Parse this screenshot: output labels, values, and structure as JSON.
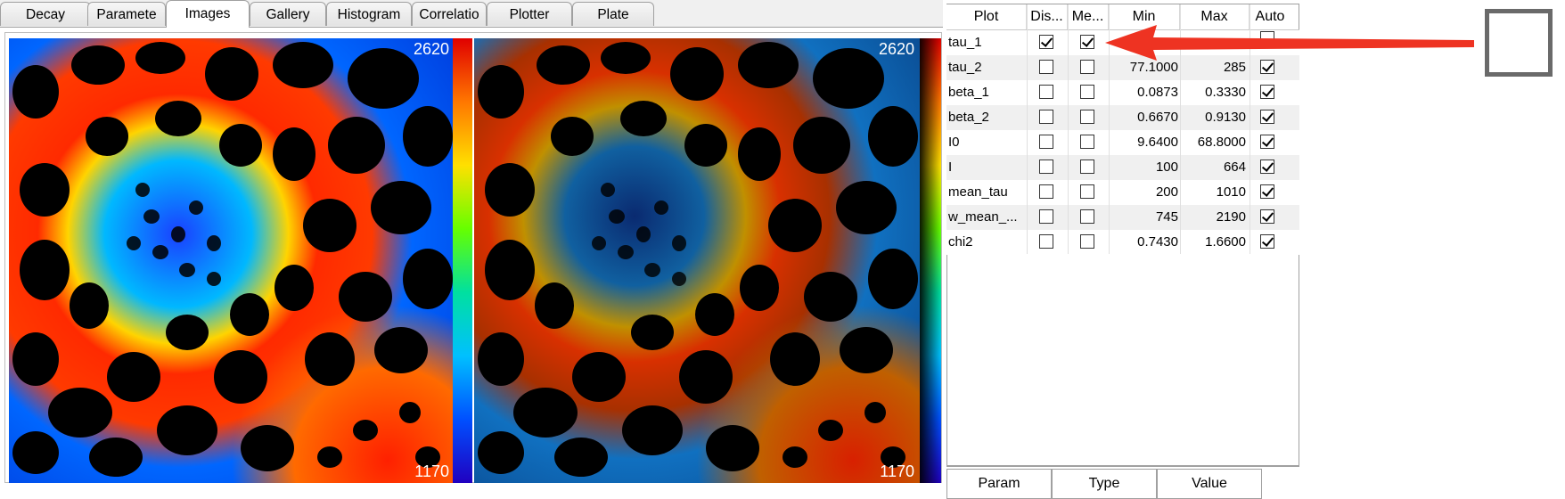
{
  "tabs": [
    "Decay",
    "Paramete",
    "Images",
    "Gallery",
    "Histogram",
    "Correlatio",
    "Plotter",
    "Plate"
  ],
  "active_tab": "Images",
  "images": {
    "left": {
      "max_label": "2620",
      "min_label": "1170"
    },
    "right": {
      "max_label": "2620",
      "min_label": "1170"
    }
  },
  "table": {
    "headers": [
      "Plot",
      "Dis...",
      "Me...",
      "Min",
      "Max",
      "Auto"
    ],
    "rows": [
      {
        "name": "tau_1",
        "display": true,
        "merge": true,
        "min": "",
        "max": "",
        "auto": null
      },
      {
        "name": "tau_2",
        "display": false,
        "merge": false,
        "min": "77.1000",
        "max": "285",
        "auto": true
      },
      {
        "name": "beta_1",
        "display": false,
        "merge": false,
        "min": "0.0873",
        "max": "0.3330",
        "auto": true
      },
      {
        "name": "beta_2",
        "display": false,
        "merge": false,
        "min": "0.6670",
        "max": "0.9130",
        "auto": true
      },
      {
        "name": "I0",
        "display": false,
        "merge": false,
        "min": "9.6400",
        "max": "68.8000",
        "auto": true
      },
      {
        "name": "I",
        "display": false,
        "merge": false,
        "min": "100",
        "max": "664",
        "auto": true
      },
      {
        "name": "mean_tau",
        "display": false,
        "merge": false,
        "min": "200",
        "max": "1010",
        "auto": true
      },
      {
        "name": "w_mean_...",
        "display": false,
        "merge": false,
        "min": "745",
        "max": "2190",
        "auto": true
      },
      {
        "name": "chi2",
        "display": false,
        "merge": false,
        "min": "0.7430",
        "max": "1.6600",
        "auto": true
      }
    ]
  },
  "param_table": {
    "headers": [
      "Param",
      "Type",
      "Value"
    ]
  },
  "colors": {
    "arrow": "#ee3322",
    "tab_bg": "#f0f0f0",
    "border": "#a0a0a0"
  }
}
